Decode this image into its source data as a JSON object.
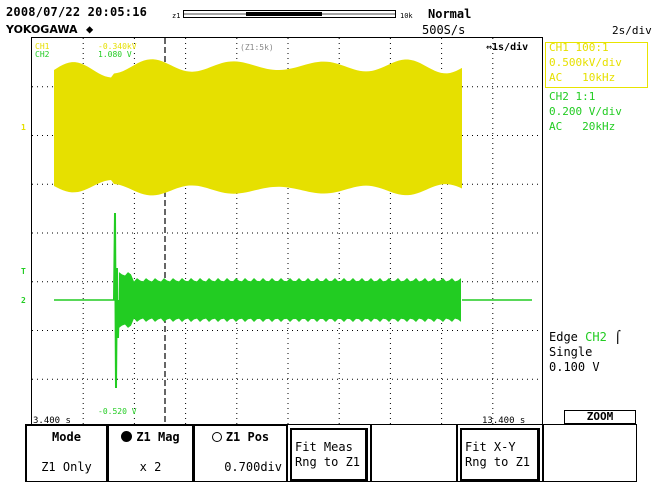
{
  "header": {
    "datetime": "2008/07/22 20:05:16",
    "brand": "YOKOGAWA",
    "zoom_bar_left": "z1",
    "zoom_bar_right": "10k",
    "trigger_mode": "Normal",
    "sample_rate": "500S/s",
    "timebase": "2s/div"
  },
  "screen": {
    "ch_labels": {
      "ch1": "CH1",
      "ch2": "CH2"
    },
    "ch1_offset": "-0.340kV",
    "ch2_offset": "1.080 V",
    "zoom_marker": "(Z1:5k)",
    "zoom_timebase": "⇔1s/div",
    "ch2_min": "-0.520 V",
    "start_time": "3.400 s",
    "end_time": "13.400 s",
    "trig_marker": "T",
    "ch1_marker": "1",
    "ch2_marker": "2"
  },
  "channels": {
    "ch1": {
      "line1": "CH1 100:1",
      "line2": "0.500kV/div",
      "line3": "AC   10kHz",
      "color": "#e6e000"
    },
    "ch2": {
      "line1": "CH2 1:1",
      "line2": "0.200 V/div",
      "line3": "AC   20kHz",
      "color": "#22cc22"
    }
  },
  "trigger": {
    "type": "Edge",
    "source": "CH2",
    "slope": "ƒŁ",
    "mode": "Single",
    "level": "0.100 V"
  },
  "softkeys": {
    "zoom_label": "ZOOM",
    "mode_title": "Mode",
    "mode_value": "Z1 Only",
    "mag_title": "Z1 Mag",
    "mag_value": "x 2",
    "pos_title": "Z1 Pos",
    "pos_value": "0.700div",
    "fit_meas_l1": "Fit Meas",
    "fit_meas_l2": "Rng to Z1",
    "fit_xy_l1": "Fit X-Y",
    "fit_xy_l2": "Rng to Z1"
  }
}
